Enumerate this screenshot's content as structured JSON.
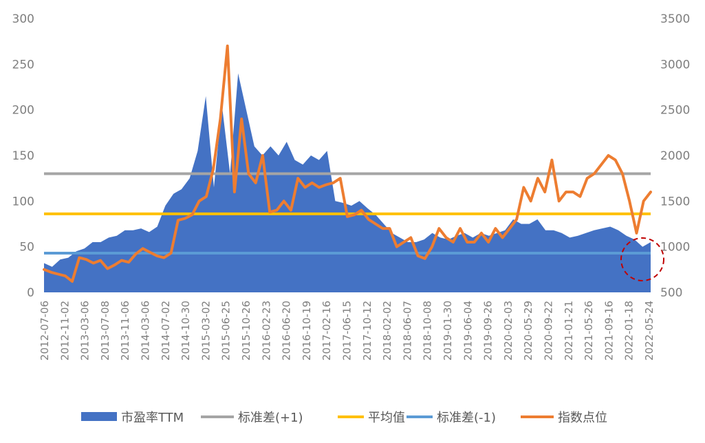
{
  "chart_data": {
    "type": "area",
    "title": "",
    "xlabel": "",
    "ylabel": "",
    "y_left_lim": [
      0,
      300
    ],
    "y_left_ticks": [
      "0",
      "50",
      "100",
      "150",
      "200",
      "250",
      "300"
    ],
    "y_right_lim": [
      500,
      3500
    ],
    "y_right_ticks": [
      "500",
      "1000",
      "1500",
      "2000",
      "2500",
      "3000",
      "3500"
    ],
    "x_ticks": [
      "2012-07-06",
      "2012-11-02",
      "2013-03-06",
      "2013-07-08",
      "2013-11-06",
      "2014-03-06",
      "2014-07-02",
      "2014-10-30",
      "2015-03-02",
      "2015-06-25",
      "2015-10-26",
      "2016-02-23",
      "2016-06-20",
      "2016-10-19",
      "2017-02-16",
      "2017-06-15",
      "2017-10-12",
      "2018-02-02",
      "2018-06-07",
      "2018-10-08",
      "2019-01-30",
      "2019-06-04",
      "2019-09-26",
      "2020-02-03",
      "2020-05-29",
      "2020-09-22",
      "2021-01-21",
      "2021-05-26",
      "2021-09-16",
      "2022-01-18",
      "2022-05-24"
    ],
    "grid": false,
    "legend_position": "bottom",
    "series": [
      {
        "name": "市盈率TTM",
        "type": "area",
        "axis": "left",
        "color": "#4472c4",
        "values": [
          32,
          28,
          36,
          38,
          45,
          48,
          55,
          55,
          60,
          62,
          68,
          68,
          70,
          66,
          72,
          95,
          108,
          113,
          125,
          155,
          215,
          115,
          205,
          130,
          240,
          200,
          160,
          150,
          160,
          150,
          165,
          145,
          140,
          150,
          145,
          155,
          100,
          98,
          95,
          100,
          92,
          85,
          75,
          65,
          60,
          55,
          55,
          58,
          65,
          60,
          58,
          62,
          65,
          60,
          65,
          62,
          65,
          68,
          80,
          75,
          75,
          80,
          68,
          68,
          65,
          60,
          62,
          65,
          68,
          70,
          72,
          68,
          62,
          58,
          50,
          55
        ]
      },
      {
        "name": "标准差(+1)",
        "type": "hline",
        "axis": "left",
        "color": "#a5a5a5",
        "value": 130
      },
      {
        "name": "平均值",
        "type": "hline",
        "axis": "left",
        "color": "#ffc000",
        "value": 86
      },
      {
        "name": "标准差(-1)",
        "type": "hline",
        "axis": "left",
        "color": "#5b9bd5",
        "value": 43
      },
      {
        "name": "指数点位",
        "type": "line",
        "axis": "right",
        "color": "#ed7d31",
        "values": [
          750,
          720,
          700,
          680,
          620,
          880,
          860,
          820,
          850,
          760,
          800,
          850,
          830,
          920,
          980,
          940,
          900,
          880,
          930,
          1290,
          1310,
          1350,
          1500,
          1550,
          1850,
          2400,
          3200,
          1600,
          2400,
          1800,
          1700,
          2000,
          1380,
          1400,
          1500,
          1400,
          1750,
          1650,
          1700,
          1650,
          1680,
          1700,
          1750,
          1330,
          1350,
          1400,
          1300,
          1250,
          1200,
          1200,
          1000,
          1050,
          1100,
          900,
          870,
          1000,
          1200,
          1100,
          1050,
          1200,
          1050,
          1050,
          1150,
          1050,
          1200,
          1100,
          1200,
          1300,
          1650,
          1500,
          1750,
          1600,
          1950,
          1500,
          1600,
          1600,
          1550,
          1750,
          1800,
          1900,
          2000,
          1950,
          1800,
          1500,
          1150,
          1500,
          1600
        ]
      }
    ],
    "annotations": [
      {
        "type": "dashed-circle",
        "color": "#c00000",
        "near": "2022-05-24"
      }
    ]
  }
}
